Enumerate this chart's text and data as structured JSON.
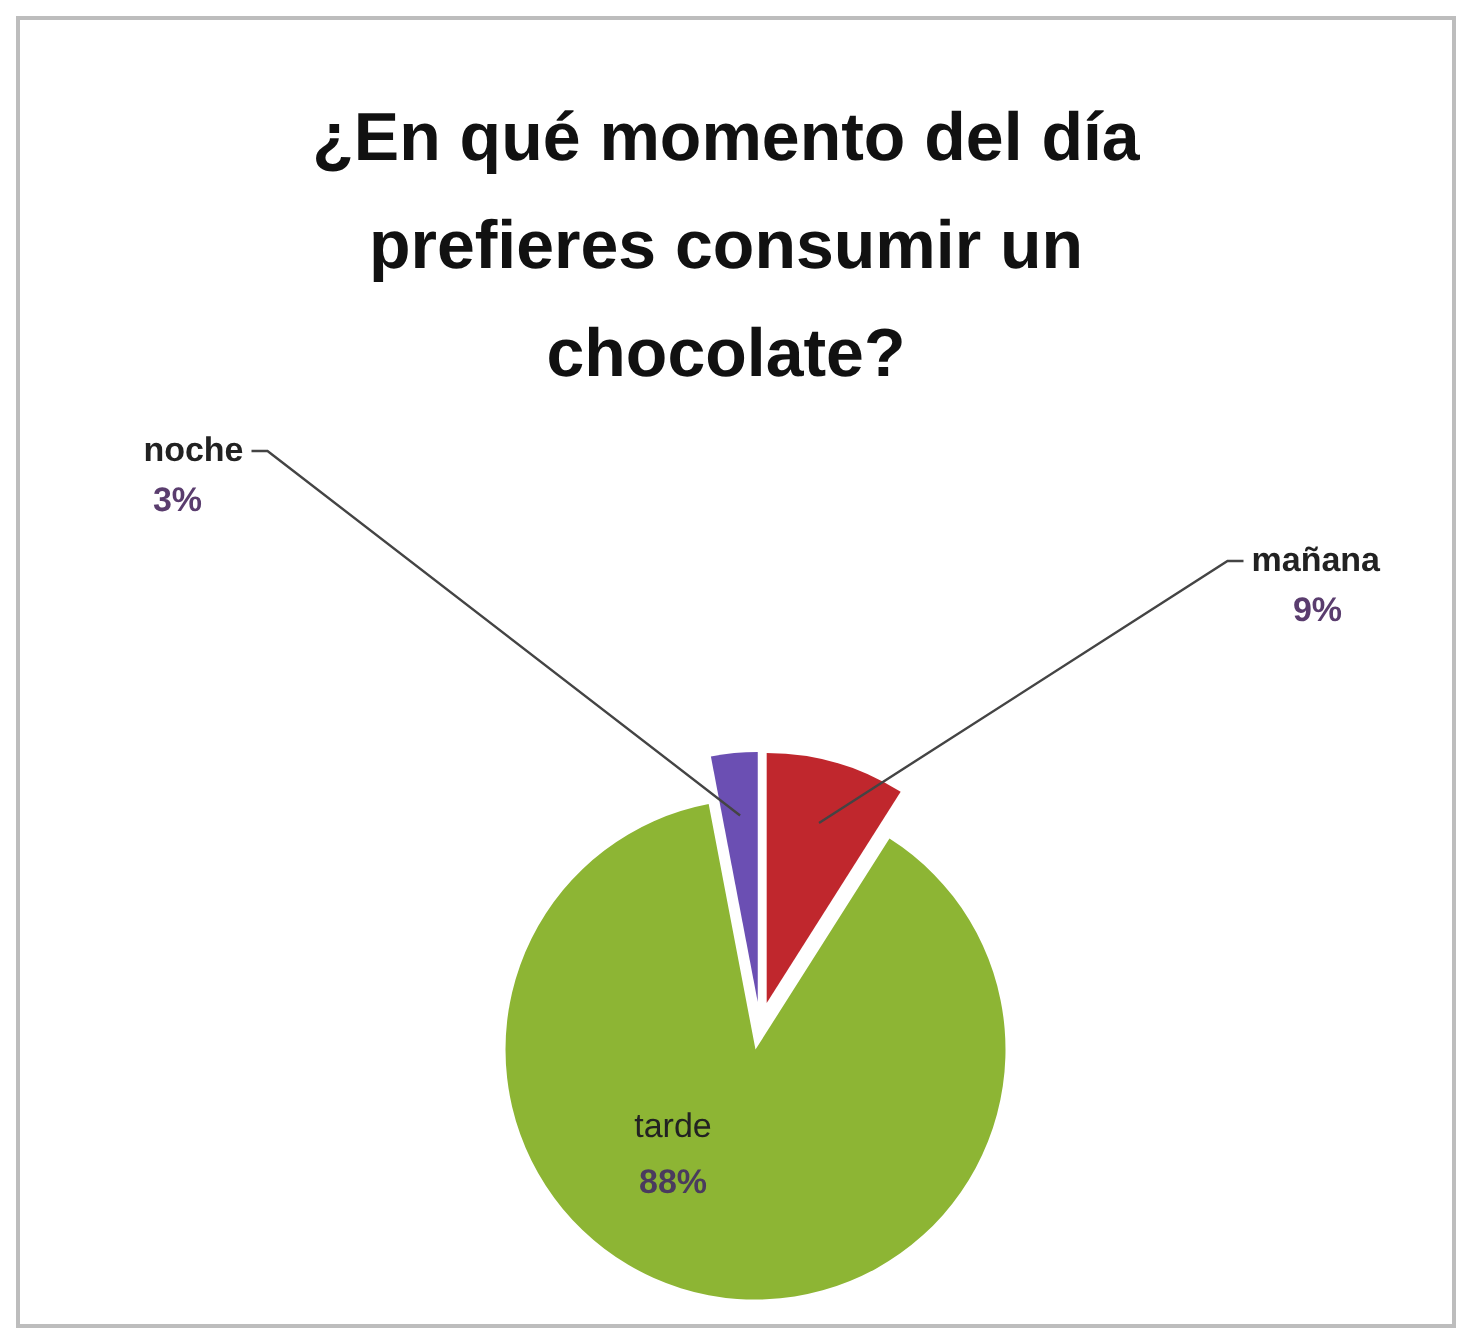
{
  "chart_data": {
    "type": "pie",
    "title": "¿En qué momento del día prefieres consumir un chocolate?",
    "categories": [
      "mañana",
      "tarde",
      "noche"
    ],
    "values": [
      9,
      88,
      3
    ],
    "colors": [
      "#c0272d",
      "#8db534",
      "#6b4fb3"
    ],
    "value_labels": [
      "9%",
      "88%",
      "3%"
    ]
  }
}
